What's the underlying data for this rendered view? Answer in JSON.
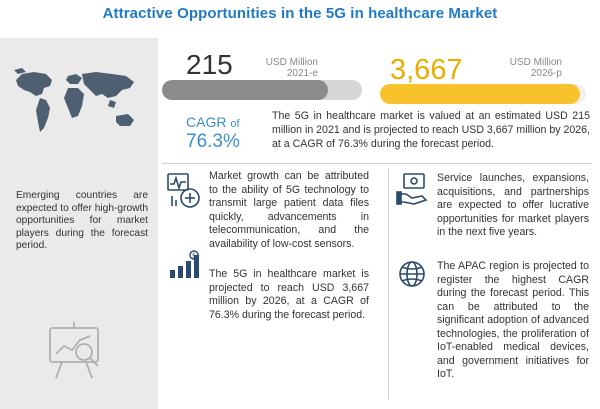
{
  "title": "Attractive Opportunities in the 5G in healthcare Market",
  "sidebar": {
    "text": "Emerging countries are expected to offer high-growth opportunities for market players during the forecast period.",
    "map_icon": "world-map-icon",
    "analytics_icon": "analytics-board-icon"
  },
  "metrics": {
    "year_2021": {
      "value": "215",
      "unit": "USD Million",
      "year": "2021-e",
      "bar_fraction": 0.83
    },
    "year_2026": {
      "value": "3,667",
      "unit": "USD Million",
      "year": "2026-p",
      "bar_fraction": 0.97
    },
    "cagr_label": "CAGR",
    "cagr_of": "of",
    "cagr_value": "76.3%",
    "summary": "The 5G in healthcare market is valued at an estimated USD 215 million in 2021 and is projected to reach USD 3,667 million by 2026, at a CAGR of 76.3% during the forecast period."
  },
  "insights": [
    {
      "icon": "healthcare-monitor-icon",
      "text": "Market growth can be attributed to the ability of 5G technology to transmit large patient data files quickly, advancements in telecommunication, and the availability of low-cost sensors."
    },
    {
      "icon": "growth-chart-icon",
      "text": "The 5G in healthcare market is projected to reach USD 3,667 million by 2026, at a CAGR of 76.3% during the forecast period."
    },
    {
      "icon": "money-hand-icon",
      "text": "Service launches, expansions, acquisitions, and partnerships are expected to offer lucrative opportunities for market players in the next five years."
    },
    {
      "icon": "globe-pin-icon",
      "text": "The APAC region is projected to register the highest CAGR during the forecast period. This can be attributed to the significant adoption of advanced technologies, the proliferation of IoT-enabled medical devices, and government initiatives for IoT."
    }
  ],
  "colors": {
    "title": "#1f7ac8",
    "cagr": "#3d8fc9",
    "bar_2021": "#8b8b8b",
    "bar_2026": "#f7c22b",
    "number_2026": "#e9ac00",
    "sidebar_bg": "#eaeaea",
    "map": "#4f5f72"
  }
}
